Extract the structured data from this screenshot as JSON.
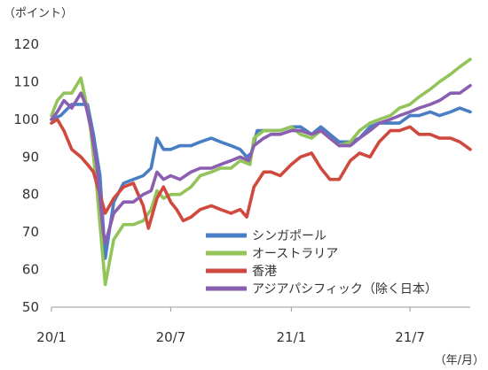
{
  "chart_data": {
    "type": "line",
    "y_unit_label": "（ポイント）",
    "x_unit_label": "（年/月）",
    "ylim": [
      50,
      120
    ],
    "y_ticks": [
      50,
      60,
      70,
      80,
      90,
      100,
      110,
      120
    ],
    "x_tick_labels": [
      "20/1",
      "20/7",
      "21/1",
      "21/7"
    ],
    "x_tick_dates": [
      "2020-01",
      "2020-07",
      "2021-01",
      "2021-07"
    ],
    "x_range": [
      "2020-01",
      "2021-10"
    ],
    "grid": false,
    "legend_position": "bottom-center",
    "series": [
      {
        "name": "シンガポール",
        "color": "#4a7ec4",
        "points": [
          [
            "2020-01-01",
            100
          ],
          [
            "2020-01-15",
            101
          ],
          [
            "2020-02-01",
            104
          ],
          [
            "2020-02-15",
            104
          ],
          [
            "2020-02-25",
            104
          ],
          [
            "2020-03-05",
            96
          ],
          [
            "2020-03-15",
            85
          ],
          [
            "2020-03-23",
            63
          ],
          [
            "2020-04-05",
            78
          ],
          [
            "2020-04-20",
            83
          ],
          [
            "2020-05-05",
            84
          ],
          [
            "2020-05-20",
            85
          ],
          [
            "2020-06-01",
            87
          ],
          [
            "2020-06-10",
            95
          ],
          [
            "2020-06-20",
            92
          ],
          [
            "2020-07-01",
            92
          ],
          [
            "2020-07-15",
            93
          ],
          [
            "2020-08-01",
            93
          ],
          [
            "2020-08-15",
            94
          ],
          [
            "2020-09-01",
            95
          ],
          [
            "2020-09-15",
            94
          ],
          [
            "2020-10-01",
            93
          ],
          [
            "2020-10-15",
            92
          ],
          [
            "2020-10-25",
            90
          ],
          [
            "2020-11-01",
            91
          ],
          [
            "2020-11-10",
            97
          ],
          [
            "2020-12-01",
            97
          ],
          [
            "2020-12-15",
            97
          ],
          [
            "2021-01-01",
            98
          ],
          [
            "2021-01-15",
            98
          ],
          [
            "2021-02-01",
            96
          ],
          [
            "2021-02-15",
            98
          ],
          [
            "2021-03-01",
            96
          ],
          [
            "2021-03-15",
            94
          ],
          [
            "2021-04-01",
            94
          ],
          [
            "2021-04-15",
            95
          ],
          [
            "2021-05-01",
            98
          ],
          [
            "2021-05-15",
            99
          ],
          [
            "2021-06-01",
            99
          ],
          [
            "2021-06-15",
            99
          ],
          [
            "2021-07-01",
            101
          ],
          [
            "2021-07-15",
            101
          ],
          [
            "2021-08-01",
            102
          ],
          [
            "2021-08-15",
            101
          ],
          [
            "2021-09-01",
            102
          ],
          [
            "2021-09-15",
            103
          ],
          [
            "2021-10-01",
            102
          ]
        ]
      },
      {
        "name": "オーストラリア",
        "color": "#93c45a",
        "points": [
          [
            "2020-01-01",
            101
          ],
          [
            "2020-01-10",
            105
          ],
          [
            "2020-01-20",
            107
          ],
          [
            "2020-02-01",
            107
          ],
          [
            "2020-02-15",
            111
          ],
          [
            "2020-02-21",
            106
          ],
          [
            "2020-03-01",
            97
          ],
          [
            "2020-03-10",
            82
          ],
          [
            "2020-03-23",
            56
          ],
          [
            "2020-04-05",
            68
          ],
          [
            "2020-04-20",
            72
          ],
          [
            "2020-05-05",
            72
          ],
          [
            "2020-05-20",
            73
          ],
          [
            "2020-06-01",
            76
          ],
          [
            "2020-06-10",
            81
          ],
          [
            "2020-06-20",
            79
          ],
          [
            "2020-07-01",
            80
          ],
          [
            "2020-07-15",
            80
          ],
          [
            "2020-08-01",
            82
          ],
          [
            "2020-08-15",
            85
          ],
          [
            "2020-09-01",
            86
          ],
          [
            "2020-09-15",
            87
          ],
          [
            "2020-10-01",
            87
          ],
          [
            "2020-10-15",
            89
          ],
          [
            "2020-10-30",
            88
          ],
          [
            "2020-11-05",
            95
          ],
          [
            "2020-11-20",
            97
          ],
          [
            "2020-12-01",
            97
          ],
          [
            "2020-12-15",
            97
          ],
          [
            "2021-01-01",
            98
          ],
          [
            "2021-01-15",
            96
          ],
          [
            "2021-02-01",
            95
          ],
          [
            "2021-02-15",
            97
          ],
          [
            "2021-03-01",
            95
          ],
          [
            "2021-03-15",
            93
          ],
          [
            "2021-04-01",
            94
          ],
          [
            "2021-04-15",
            97
          ],
          [
            "2021-05-01",
            99
          ],
          [
            "2021-05-15",
            100
          ],
          [
            "2021-06-01",
            101
          ],
          [
            "2021-06-15",
            103
          ],
          [
            "2021-07-01",
            104
          ],
          [
            "2021-07-15",
            106
          ],
          [
            "2021-08-01",
            108
          ],
          [
            "2021-08-15",
            110
          ],
          [
            "2021-09-01",
            112
          ],
          [
            "2021-09-15",
            114
          ],
          [
            "2021-10-01",
            116
          ]
        ]
      },
      {
        "name": "香港",
        "color": "#d0493f",
        "points": [
          [
            "2020-01-01",
            99
          ],
          [
            "2020-01-10",
            100
          ],
          [
            "2020-01-20",
            97
          ],
          [
            "2020-02-01",
            92
          ],
          [
            "2020-02-15",
            90
          ],
          [
            "2020-02-25",
            88
          ],
          [
            "2020-03-05",
            86
          ],
          [
            "2020-03-15",
            80
          ],
          [
            "2020-03-23",
            75
          ],
          [
            "2020-04-05",
            79
          ],
          [
            "2020-04-20",
            82
          ],
          [
            "2020-05-05",
            83
          ],
          [
            "2020-05-20",
            77
          ],
          [
            "2020-05-28",
            71
          ],
          [
            "2020-06-10",
            79
          ],
          [
            "2020-06-20",
            82
          ],
          [
            "2020-07-01",
            78
          ],
          [
            "2020-07-10",
            76
          ],
          [
            "2020-07-20",
            73
          ],
          [
            "2020-08-01",
            74
          ],
          [
            "2020-08-15",
            76
          ],
          [
            "2020-09-01",
            77
          ],
          [
            "2020-09-15",
            76
          ],
          [
            "2020-10-01",
            75
          ],
          [
            "2020-10-15",
            76
          ],
          [
            "2020-10-25",
            74
          ],
          [
            "2020-11-05",
            82
          ],
          [
            "2020-11-20",
            86
          ],
          [
            "2020-12-01",
            86
          ],
          [
            "2020-12-15",
            85
          ],
          [
            "2021-01-01",
            88
          ],
          [
            "2021-01-15",
            90
          ],
          [
            "2021-02-01",
            91
          ],
          [
            "2021-02-15",
            87
          ],
          [
            "2021-03-01",
            84
          ],
          [
            "2021-03-15",
            84
          ],
          [
            "2021-04-01",
            89
          ],
          [
            "2021-04-15",
            91
          ],
          [
            "2021-05-01",
            90
          ],
          [
            "2021-05-15",
            94
          ],
          [
            "2021-06-01",
            97
          ],
          [
            "2021-06-15",
            97
          ],
          [
            "2021-07-01",
            98
          ],
          [
            "2021-07-15",
            96
          ],
          [
            "2021-08-01",
            96
          ],
          [
            "2021-08-15",
            95
          ],
          [
            "2021-09-01",
            95
          ],
          [
            "2021-09-15",
            94
          ],
          [
            "2021-10-01",
            92
          ]
        ]
      },
      {
        "name": "アジアパシフィック（除く日本）",
        "color": "#8a5fb2",
        "points": [
          [
            "2020-01-01",
            100
          ],
          [
            "2020-01-10",
            102
          ],
          [
            "2020-01-20",
            105
          ],
          [
            "2020-02-01",
            103
          ],
          [
            "2020-02-15",
            107
          ],
          [
            "2020-02-22",
            104
          ],
          [
            "2020-03-01",
            98
          ],
          [
            "2020-03-10",
            88
          ],
          [
            "2020-03-20",
            70
          ],
          [
            "2020-03-23",
            67
          ],
          [
            "2020-04-05",
            75
          ],
          [
            "2020-04-20",
            78
          ],
          [
            "2020-05-05",
            78
          ],
          [
            "2020-05-20",
            80
          ],
          [
            "2020-06-01",
            81
          ],
          [
            "2020-06-10",
            86
          ],
          [
            "2020-06-20",
            84
          ],
          [
            "2020-07-01",
            85
          ],
          [
            "2020-07-15",
            84
          ],
          [
            "2020-08-01",
            86
          ],
          [
            "2020-08-15",
            87
          ],
          [
            "2020-09-01",
            87
          ],
          [
            "2020-09-15",
            88
          ],
          [
            "2020-10-01",
            89
          ],
          [
            "2020-10-15",
            90
          ],
          [
            "2020-10-28",
            89
          ],
          [
            "2020-11-05",
            93
          ],
          [
            "2020-11-20",
            95
          ],
          [
            "2020-12-01",
            96
          ],
          [
            "2020-12-15",
            96
          ],
          [
            "2021-01-01",
            97
          ],
          [
            "2021-01-15",
            97
          ],
          [
            "2021-02-01",
            96
          ],
          [
            "2021-02-15",
            97
          ],
          [
            "2021-03-01",
            95
          ],
          [
            "2021-03-15",
            93
          ],
          [
            "2021-04-01",
            93
          ],
          [
            "2021-04-15",
            95
          ],
          [
            "2021-05-01",
            97
          ],
          [
            "2021-05-15",
            99
          ],
          [
            "2021-06-01",
            100
          ],
          [
            "2021-06-15",
            101
          ],
          [
            "2021-07-01",
            102
          ],
          [
            "2021-07-15",
            103
          ],
          [
            "2021-08-01",
            104
          ],
          [
            "2021-08-15",
            105
          ],
          [
            "2021-09-01",
            107
          ],
          [
            "2021-09-15",
            107
          ],
          [
            "2021-10-01",
            109
          ]
        ]
      }
    ]
  }
}
